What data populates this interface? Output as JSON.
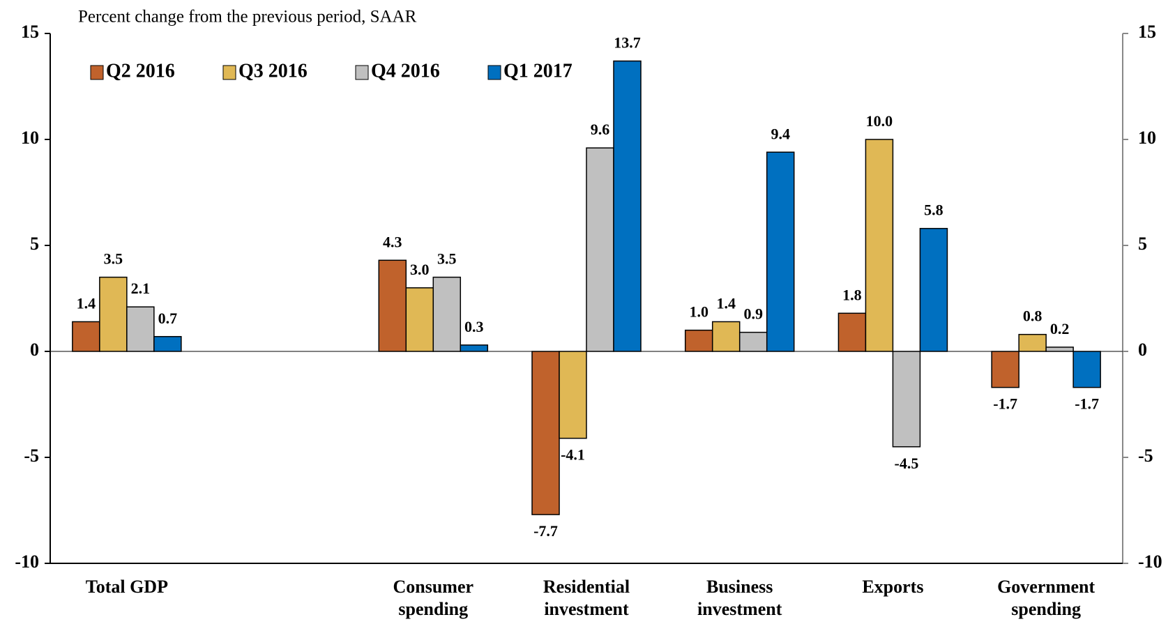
{
  "chart_data": {
    "type": "bar",
    "subtitle": "Percent change from the previous period, SAAR",
    "categories": [
      "Total GDP",
      null,
      "Consumer spending",
      "Residential investment",
      "Business investment",
      "Exports",
      "Government spending"
    ],
    "series": [
      {
        "name": "Q2 2016",
        "color": "#c0622c",
        "values": [
          1.4,
          null,
          4.3,
          -7.7,
          1.0,
          1.8,
          -1.7
        ],
        "value_labels": [
          "1.4",
          null,
          "4.3",
          "-7.7",
          "1.0",
          "1.8",
          "-1.7"
        ]
      },
      {
        "name": "Q3 2016",
        "color": "#e0b855",
        "values": [
          3.5,
          null,
          3.0,
          -4.1,
          1.4,
          10.0,
          0.8
        ],
        "value_labels": [
          "3.5",
          null,
          "3.0",
          "-4.1",
          "1.4",
          "10.0",
          "0.8"
        ]
      },
      {
        "name": "Q4 2016",
        "color": "#c0c0c0",
        "values": [
          2.1,
          null,
          3.5,
          9.6,
          0.9,
          -4.5,
          0.2
        ],
        "value_labels": [
          "2.1",
          null,
          "3.5",
          "9.6",
          "0.9",
          "-4.5",
          "0.2"
        ]
      },
      {
        "name": "Q1 2017",
        "color": "#0070c0",
        "values": [
          0.7,
          null,
          0.3,
          13.7,
          9.4,
          5.8,
          -1.7
        ],
        "value_labels": [
          "0.7",
          null,
          "0.3",
          "13.7",
          "9.4",
          "5.8",
          "-1.7"
        ]
      }
    ],
    "ylim": [
      -10,
      15
    ],
    "yticks": [
      -10,
      -5,
      0,
      5,
      10,
      15
    ],
    "y2lim": [
      -10,
      15
    ],
    "y2ticks": [
      -10,
      -5,
      0,
      5,
      10,
      15
    ],
    "legend": "top-left"
  }
}
